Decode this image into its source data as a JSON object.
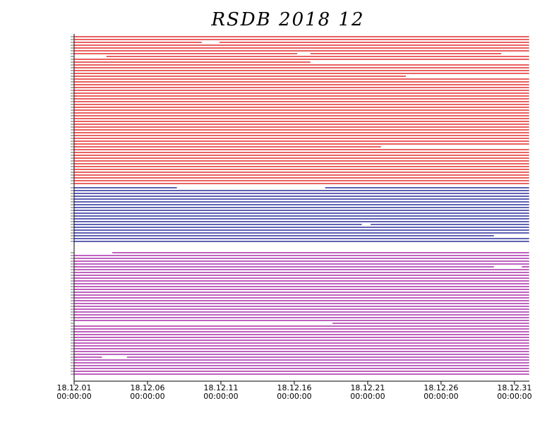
{
  "chart_data": {
    "type": "timeline",
    "title": "RSDB  2018  12",
    "xlim": [
      1,
      32
    ],
    "xticks": [
      {
        "value": 1,
        "label": "18.12.01"
      },
      {
        "value": 6,
        "label": "18.12.06"
      },
      {
        "value": 11,
        "label": "18.12.11"
      },
      {
        "value": 16,
        "label": "18.12.16"
      },
      {
        "value": 21,
        "label": "18.12.21"
      },
      {
        "value": 26,
        "label": "18.12.26"
      },
      {
        "value": 31,
        "label": "18.12.31"
      }
    ],
    "xtick_times": [
      "00:00:00",
      "00:00:00",
      "00:00:00",
      "00:00:00",
      "00:00:00",
      "00:00:00",
      "00:00:00"
    ],
    "groups": [
      {
        "color": "#dd0000",
        "rows": [
          [
            [
              1,
              32
            ]
          ],
          [
            [
              1,
              32
            ]
          ],
          [
            [
              1,
              9.7
            ],
            [
              10.9,
              32
            ]
          ],
          [
            [
              1,
              32
            ]
          ],
          [
            [
              1,
              32
            ]
          ],
          [
            [
              1,
              32
            ]
          ],
          [
            [
              1,
              16.2
            ],
            [
              17.1,
              30.1
            ]
          ],
          [
            [
              3.2,
              32
            ]
          ],
          [
            [
              1,
              32
            ]
          ],
          [
            [
              1,
              17.1
            ]
          ],
          [
            [
              1,
              32
            ]
          ],
          [
            [
              1,
              32
            ]
          ],
          [
            [
              1,
              32
            ]
          ],
          [
            [
              1,
              32
            ]
          ],
          [
            [
              1,
              23.6
            ]
          ],
          [
            [
              1,
              32
            ]
          ],
          [
            [
              1,
              32
            ]
          ],
          [
            [
              1,
              32
            ]
          ],
          [
            [
              1,
              32
            ]
          ],
          [
            [
              1,
              32
            ]
          ],
          [
            [
              1,
              32
            ]
          ],
          [
            [
              1,
              32
            ]
          ],
          [
            [
              1,
              32
            ]
          ],
          [
            [
              1,
              32
            ]
          ],
          [
            [
              1,
              32
            ]
          ],
          [
            [
              1,
              32
            ]
          ],
          [
            [
              1,
              32
            ]
          ],
          [
            [
              1,
              32
            ]
          ],
          [
            [
              1,
              32
            ]
          ],
          [
            [
              1,
              32
            ]
          ],
          [
            [
              1,
              32
            ]
          ],
          [
            [
              1,
              32
            ]
          ],
          [
            [
              1,
              32
            ]
          ],
          [
            [
              1,
              32
            ]
          ],
          [
            [
              1,
              32
            ]
          ],
          [
            [
              1,
              32
            ]
          ],
          [
            [
              1,
              32
            ]
          ],
          [
            [
              1,
              32
            ]
          ],
          [
            [
              1,
              32
            ]
          ],
          [
            [
              1,
              21.9
            ]
          ],
          [
            [
              1,
              32
            ]
          ],
          [
            [
              1,
              32
            ]
          ],
          [
            [
              1,
              32
            ]
          ],
          [
            [
              1,
              32
            ]
          ],
          [
            [
              1,
              32
            ]
          ],
          [
            [
              1,
              32
            ]
          ],
          [
            [
              1,
              32
            ]
          ],
          [
            [
              1,
              32
            ]
          ],
          [
            [
              1,
              32
            ]
          ],
          [
            [
              1,
              32
            ]
          ],
          [
            [
              1,
              32
            ]
          ],
          [
            [
              1,
              32
            ]
          ],
          [
            [
              1,
              32
            ]
          ]
        ]
      },
      {
        "color": "#000088",
        "rows": [
          [
            [
              1,
              8
            ],
            [
              18.1,
              32
            ]
          ],
          [
            [
              1,
              32
            ]
          ],
          [
            [
              1,
              32
            ]
          ],
          [
            [
              1,
              32
            ]
          ],
          [
            [
              1,
              32
            ]
          ],
          [
            [
              1,
              32
            ]
          ],
          [
            [
              1,
              32
            ]
          ],
          [
            [
              1,
              32
            ]
          ],
          [
            [
              1,
              32
            ]
          ],
          [
            [
              1,
              32
            ]
          ],
          [
            [
              1,
              32
            ]
          ],
          [
            [
              1,
              32
            ]
          ],
          [
            [
              1,
              32
            ]
          ],
          [
            [
              1,
              20.6
            ],
            [
              21.2,
              32
            ]
          ],
          [
            [
              1,
              32
            ]
          ],
          [
            [
              1,
              32
            ]
          ],
          [
            [
              1,
              32
            ]
          ],
          [
            [
              1,
              29.6
            ]
          ],
          [
            [
              1,
              32
            ]
          ],
          [
            [
              1,
              32
            ]
          ]
        ]
      },
      {
        "color": "#990099",
        "rows": [
          [
            [
              3.6,
              32
            ]
          ],
          [
            [
              1,
              32
            ]
          ],
          [
            [
              1,
              32
            ]
          ],
          [
            [
              1,
              32
            ]
          ],
          [
            [
              1,
              32
            ]
          ],
          [
            [
              1,
              29.6
            ],
            [
              31.5,
              32
            ]
          ],
          [
            [
              1,
              32
            ]
          ],
          [
            [
              1,
              32
            ]
          ],
          [
            [
              1,
              32
            ]
          ],
          [
            [
              1,
              32
            ]
          ],
          [
            [
              1,
              32
            ]
          ],
          [
            [
              1,
              32
            ]
          ],
          [
            [
              1,
              32
            ]
          ],
          [
            [
              1,
              32
            ]
          ],
          [
            [
              1,
              32
            ]
          ],
          [
            [
              1,
              32
            ]
          ],
          [
            [
              1,
              32
            ]
          ],
          [
            [
              1,
              32
            ]
          ],
          [
            [
              1,
              32
            ]
          ],
          [
            [
              1,
              32
            ]
          ],
          [
            [
              1,
              32
            ]
          ],
          [
            [
              1,
              32
            ]
          ],
          [
            [
              1,
              32
            ]
          ],
          [
            [
              1,
              32
            ]
          ],
          [
            [
              1,
              32
            ]
          ],
          [
            [
              18.6,
              32
            ]
          ],
          [
            [
              1,
              32
            ]
          ],
          [
            [
              1,
              32
            ]
          ],
          [
            [
              1,
              32
            ]
          ],
          [
            [
              1,
              32
            ]
          ],
          [
            [
              1,
              32
            ]
          ],
          [
            [
              1,
              32
            ]
          ],
          [
            [
              1,
              32
            ]
          ],
          [
            [
              1,
              32
            ]
          ],
          [
            [
              1,
              32
            ]
          ],
          [
            [
              1,
              32
            ]
          ],
          [
            [
              1,
              32
            ]
          ],
          [
            [
              1,
              2.9
            ],
            [
              4.6,
              32
            ]
          ],
          [
            [
              1,
              32
            ]
          ],
          [
            [
              1,
              32
            ]
          ],
          [
            [
              1,
              32
            ]
          ],
          [
            [
              1,
              32
            ]
          ],
          [
            [
              1,
              32
            ]
          ],
          [
            [
              1,
              32
            ]
          ]
        ]
      }
    ]
  }
}
